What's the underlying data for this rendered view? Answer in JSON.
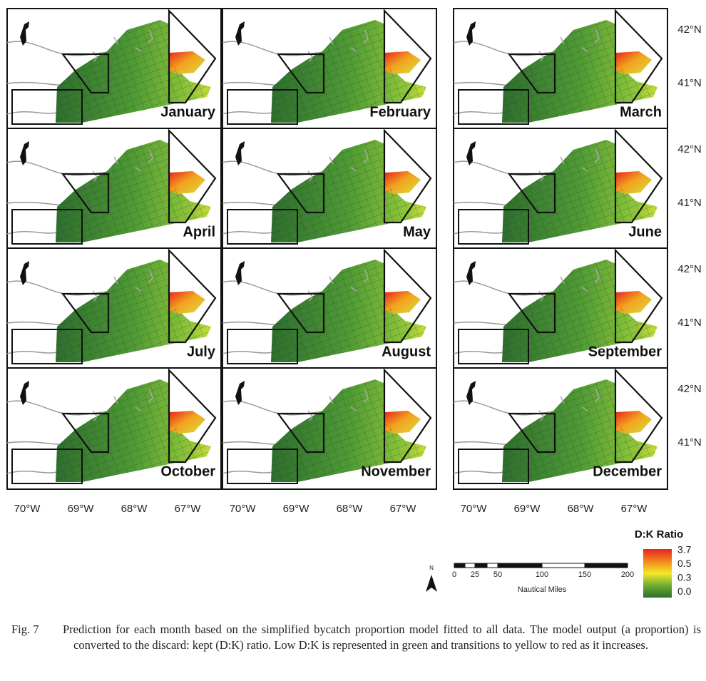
{
  "panels": [
    {
      "label": "January"
    },
    {
      "label": "February"
    },
    {
      "label": "March"
    },
    {
      "label": "April"
    },
    {
      "label": "May"
    },
    {
      "label": "June"
    },
    {
      "label": "July"
    },
    {
      "label": "August"
    },
    {
      "label": "September"
    },
    {
      "label": "October"
    },
    {
      "label": "November"
    },
    {
      "label": "December"
    }
  ],
  "latitude_labels": [
    "42°N",
    "41°N"
  ],
  "longitude_labels": [
    "70°W",
    "69°W",
    "68°W",
    "67°W"
  ],
  "legend": {
    "title": "D:K Ratio",
    "labels": [
      "3.7",
      "0.5",
      "0.3",
      "0.0"
    ]
  },
  "scale_bar": {
    "ticks": [
      "0",
      "25",
      "50",
      "100",
      "150",
      "200"
    ],
    "unit": "Nautical Miles"
  },
  "north_arrow": "N",
  "caption": {
    "label": "Fig. 7",
    "text": "Prediction for each month based on the simplified bycatch proportion model fitted to all data. The model output (a proportion) is converted to the discard: kept (D:K) ratio. Low D:K is represented in green and transitions to yellow to red as it increases."
  }
}
